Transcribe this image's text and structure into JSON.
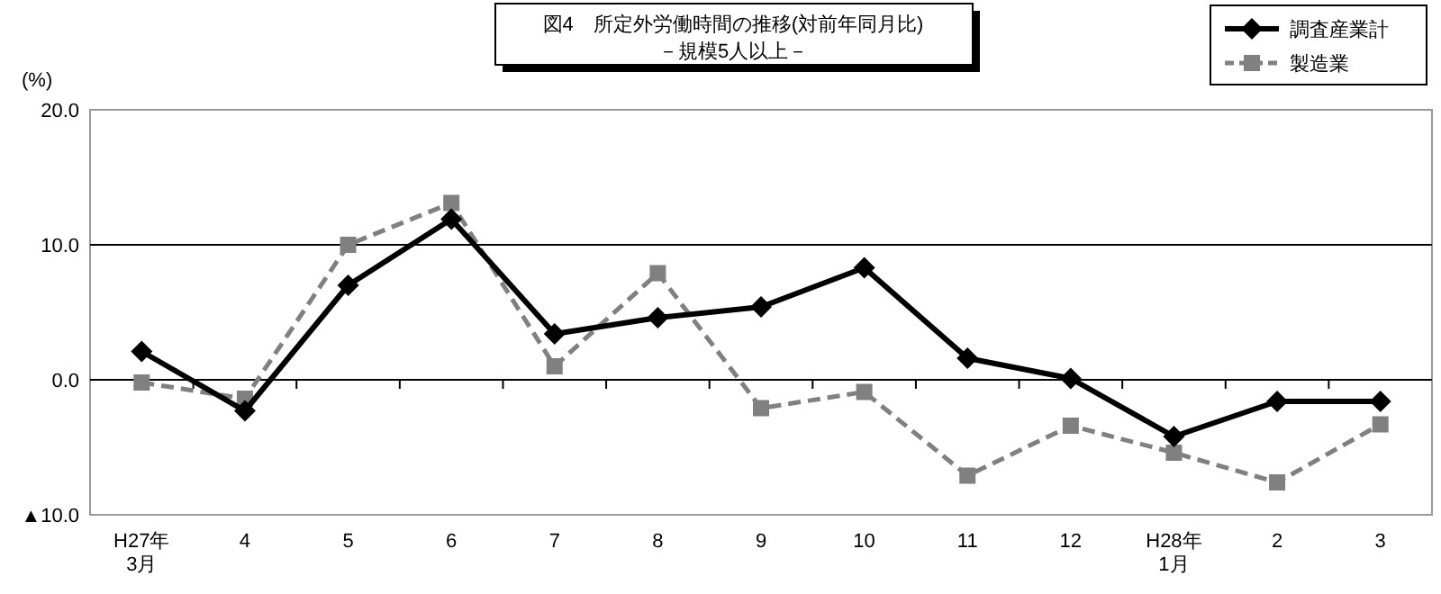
{
  "chart_data": {
    "type": "line",
    "title": "図4　所定外労働時間の推移(対前年同月比)",
    "subtitle": "－規模5人以上－",
    "ylabel": "(%)",
    "categories": [
      "H27年\n3月",
      "4",
      "5",
      "6",
      "7",
      "8",
      "9",
      "10",
      "11",
      "12",
      "H28年\n1月",
      "2",
      "3"
    ],
    "series": [
      {
        "name": "調査産業計",
        "color": "#000000",
        "marker": "diamond",
        "line_style": "solid",
        "values": [
          2.1,
          -2.3,
          7.0,
          11.9,
          3.4,
          4.6,
          5.4,
          8.3,
          1.6,
          0.1,
          -4.2,
          -1.6,
          -1.6
        ]
      },
      {
        "name": "製造業",
        "color": "#808080",
        "marker": "square",
        "line_style": "dashed",
        "values": [
          -0.2,
          -1.4,
          10.0,
          13.1,
          1.0,
          7.9,
          -2.1,
          -0.9,
          -7.1,
          -3.4,
          -5.4,
          -7.6,
          -3.3
        ]
      }
    ],
    "ylim": [
      -10,
      20
    ],
    "yticks": [
      {
        "value": -10,
        "label": "▲10.0"
      },
      {
        "value": 0,
        "label": "0.0"
      },
      {
        "value": 10,
        "label": "10.0"
      },
      {
        "value": 20,
        "label": "20.0"
      }
    ],
    "grid": "y",
    "legend": "top right"
  }
}
